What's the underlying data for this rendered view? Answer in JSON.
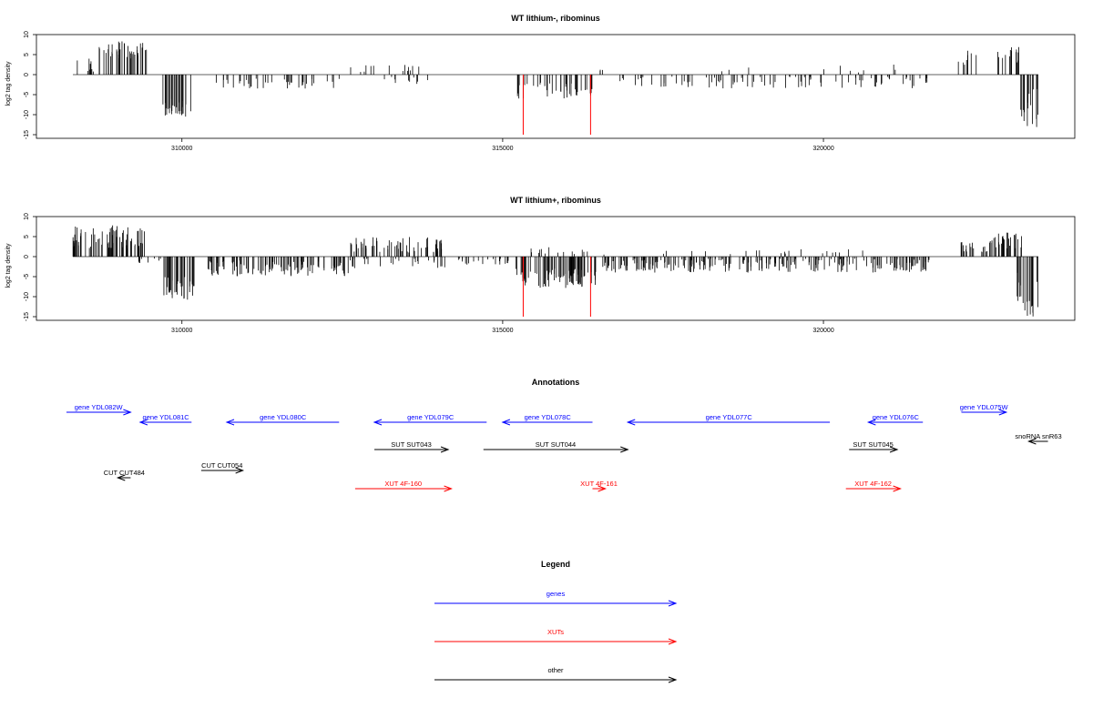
{
  "chart_data": [
    {
      "type": "bar",
      "title": "WT lithium-, ribominus",
      "ylabel": "log2 tag density",
      "xlabel": "",
      "xlim": [
        307950,
        323850
      ],
      "ylim": [
        -15,
        10
      ],
      "x_ticks": [
        310000,
        315000,
        320000
      ],
      "x_tick_labels": [
        "310000",
        "315000",
        "320000"
      ],
      "y_ticks": [
        -15,
        -10,
        -5,
        0,
        5,
        10
      ],
      "y_tick_labels": [
        "-15",
        "-10",
        "-5",
        "0",
        "5",
        "10"
      ],
      "grid": false,
      "bar_color": "#000000",
      "marker_color": "#ff0000",
      "markers": [
        {
          "x": 315320,
          "y": -15
        },
        {
          "x": 316370,
          "y": -15
        }
      ],
      "regions": [
        {
          "x": [
            308300,
            308700
          ],
          "y": [
            0,
            4
          ],
          "sign": 1,
          "n": 8
        },
        {
          "x": [
            308700,
            309450
          ],
          "y": [
            4,
            8.5
          ],
          "sign": 1,
          "n": 40
        },
        {
          "x": [
            309700,
            310150
          ],
          "y": [
            6,
            10.5
          ],
          "sign": -1,
          "n": 30
        },
        {
          "x": [
            310450,
            312500
          ],
          "y": [
            1,
            3.5
          ],
          "sign": -1,
          "n": 40
        },
        {
          "x": [
            312600,
            313800
          ],
          "y": [
            0.5,
            2.5
          ],
          "sign": 1,
          "n": 14
        },
        {
          "x": [
            313100,
            314000
          ],
          "y": [
            0.5,
            2.5
          ],
          "sign": -1,
          "n": 10
        },
        {
          "x": [
            315200,
            316400
          ],
          "y": [
            2,
            6
          ],
          "sign": -1,
          "n": 40
        },
        {
          "x": [
            316500,
            316700
          ],
          "y": [
            0.5,
            3
          ],
          "sign": 1,
          "n": 3
        },
        {
          "x": [
            316800,
            321800
          ],
          "y": [
            0.5,
            3.5
          ],
          "sign": -1,
          "n": 90
        },
        {
          "x": [
            317800,
            321500
          ],
          "y": [
            0.5,
            2.5
          ],
          "sign": 1,
          "n": 10
        },
        {
          "x": [
            322100,
            322400
          ],
          "y": [
            2,
            6
          ],
          "sign": 1,
          "n": 8
        },
        {
          "x": [
            322650,
            323050
          ],
          "y": [
            3,
            7
          ],
          "sign": 1,
          "n": 14
        },
        {
          "x": [
            323050,
            323350
          ],
          "y": [
            3,
            14
          ],
          "sign": -1,
          "n": 16
        }
      ]
    },
    {
      "type": "bar",
      "title": "WT lithium+, ribominus",
      "ylabel": "log2 tag density",
      "xlabel": "",
      "xlim": [
        307950,
        323850
      ],
      "ylim": [
        -15,
        10
      ],
      "x_ticks": [
        310000,
        315000,
        320000
      ],
      "x_tick_labels": [
        "310000",
        "315000",
        "320000"
      ],
      "y_ticks": [
        -15,
        -10,
        -5,
        0,
        5,
        10
      ],
      "y_tick_labels": [
        "-15",
        "-10",
        "-5",
        "0",
        "5",
        "10"
      ],
      "grid": false,
      "bar_color": "#000000",
      "marker_color": "#ff0000",
      "markers": [
        {
          "x": 315320,
          "y": -15
        },
        {
          "x": 316370,
          "y": -15
        }
      ],
      "regions": [
        {
          "x": [
            308300,
            309450
          ],
          "y": [
            2,
            8
          ],
          "sign": 1,
          "n": 70
        },
        {
          "x": [
            309300,
            309700
          ],
          "y": [
            0,
            2
          ],
          "sign": -1,
          "n": 8
        },
        {
          "x": [
            309700,
            310200
          ],
          "y": [
            5,
            11
          ],
          "sign": -1,
          "n": 35
        },
        {
          "x": [
            310400,
            312600
          ],
          "y": [
            1,
            5
          ],
          "sign": -1,
          "n": 110
        },
        {
          "x": [
            312600,
            314100
          ],
          "y": [
            1,
            5
          ],
          "sign": 1,
          "n": 60
        },
        {
          "x": [
            312600,
            314200
          ],
          "y": [
            0.5,
            3
          ],
          "sign": -1,
          "n": 30
        },
        {
          "x": [
            314200,
            315100
          ],
          "y": [
            0.5,
            2
          ],
          "sign": -1,
          "n": 20
        },
        {
          "x": [
            315200,
            316450
          ],
          "y": [
            3,
            8
          ],
          "sign": -1,
          "n": 80
        },
        {
          "x": [
            315200,
            316600
          ],
          "y": [
            0.5,
            2.5
          ],
          "sign": 1,
          "n": 15
        },
        {
          "x": [
            316500,
            321700
          ],
          "y": [
            0.5,
            4
          ],
          "sign": -1,
          "n": 230
        },
        {
          "x": [
            317500,
            321000
          ],
          "y": [
            0.5,
            2
          ],
          "sign": 1,
          "n": 20
        },
        {
          "x": [
            322100,
            322600
          ],
          "y": [
            1,
            4
          ],
          "sign": 1,
          "n": 20
        },
        {
          "x": [
            322600,
            323100
          ],
          "y": [
            2,
            6
          ],
          "sign": 1,
          "n": 28
        },
        {
          "x": [
            323000,
            323350
          ],
          "y": [
            4,
            15
          ],
          "sign": -1,
          "n": 20
        }
      ]
    }
  ],
  "annotations": {
    "title": "Annotations",
    "features": [
      {
        "label": "gene YDL082W",
        "kind": "gene",
        "dir": "+",
        "x": [
          308200,
          309200
        ],
        "row": 1
      },
      {
        "label": "gene YDL081C",
        "kind": "gene",
        "dir": "-",
        "x": [
          309350,
          310150
        ],
        "row": 2
      },
      {
        "label": "gene YDL080C",
        "kind": "gene",
        "dir": "-",
        "x": [
          310700,
          312450
        ],
        "row": 2
      },
      {
        "label": "gene YDL079C",
        "kind": "gene",
        "dir": "-",
        "x": [
          313000,
          314750
        ],
        "row": 2
      },
      {
        "label": "gene YDL078C",
        "kind": "gene",
        "dir": "-",
        "x": [
          315000,
          316400
        ],
        "row": 2
      },
      {
        "label": "gene YDL077C",
        "kind": "gene",
        "dir": "-",
        "x": [
          316950,
          320100
        ],
        "row": 2
      },
      {
        "label": "gene YDL076C",
        "kind": "gene",
        "dir": "-",
        "x": [
          320700,
          321550
        ],
        "row": 2
      },
      {
        "label": "gene YDL075W",
        "kind": "gene",
        "dir": "+",
        "x": [
          322150,
          322850
        ],
        "row": 1
      },
      {
        "label": "snoRNA snR63",
        "kind": "other",
        "dir": "-",
        "x": [
          323200,
          323500
        ],
        "row": 3
      },
      {
        "label": "SUT SUT043",
        "kind": "other",
        "dir": "+",
        "x": [
          313000,
          314150
        ],
        "row": 4
      },
      {
        "label": "SUT SUT044",
        "kind": "other",
        "dir": "+",
        "x": [
          314700,
          316950
        ],
        "row": 4
      },
      {
        "label": "SUT SUT045",
        "kind": "other",
        "dir": "+",
        "x": [
          320400,
          321150
        ],
        "row": 4
      },
      {
        "label": "CUT CUT054",
        "kind": "other",
        "dir": "+",
        "x": [
          310300,
          310950
        ],
        "row": 5
      },
      {
        "label": "CUT CUT484",
        "kind": "other",
        "dir": "-",
        "x": [
          309000,
          309200
        ],
        "row": 6
      },
      {
        "label": "XUT 4F-160",
        "kind": "xut",
        "dir": "+",
        "x": [
          312700,
          314200
        ],
        "row": 7
      },
      {
        "label": "XUT 4F-161",
        "kind": "xut",
        "dir": "+",
        "x": [
          316400,
          316600
        ],
        "row": 7
      },
      {
        "label": "XUT 4F-162",
        "kind": "xut",
        "dir": "+",
        "x": [
          320350,
          321200
        ],
        "row": 7
      }
    ]
  },
  "legend": {
    "title": "Legend",
    "items": [
      {
        "label": "genes",
        "color": "#0000ff"
      },
      {
        "label": "XUTs",
        "color": "#ff0000"
      },
      {
        "label": "other",
        "color": "#000000"
      }
    ]
  },
  "colors": {
    "gene": "#0000ff",
    "xut": "#ff0000",
    "other": "#000000",
    "axis": "#000000",
    "zero_line": "#808080"
  }
}
